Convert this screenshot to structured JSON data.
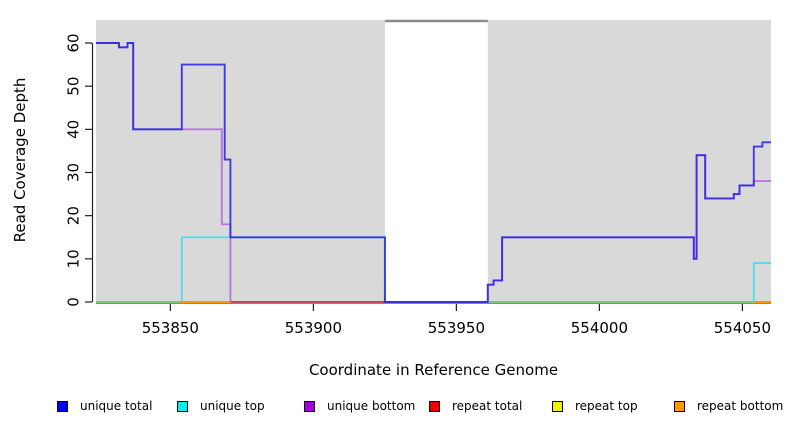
{
  "chart_data": {
    "type": "line",
    "title": "",
    "xlabel": "Coordinate in Reference Genome",
    "ylabel": "Read Coverage Depth",
    "x_axis": {
      "min": 553824,
      "max": 554060,
      "ticks": [
        553850,
        553900,
        553950,
        554000,
        554050
      ]
    },
    "y_axis": {
      "ticks": [
        0,
        10,
        20,
        30,
        40,
        50,
        60
      ],
      "ylim": [
        0,
        65
      ]
    },
    "plot_background": "#d9d9d9",
    "axis_color": "#222222",
    "baseline_axis_color": "#8a8a8a",
    "grid": "off",
    "legend_position": "bottom",
    "gap_region": {
      "x_start": 553925,
      "x_end": 553961,
      "fill": "#ffffff",
      "top_line_color": "#8a8a8a"
    },
    "series": [
      {
        "name": "unique total",
        "legend_color": "#0000ee",
        "line_color": "#2b24e0",
        "opacity": 0.88,
        "draw_order": 6,
        "runs": [
          [
            [
              553824,
              553832,
              60
            ],
            [
              553832,
              553835,
              59
            ],
            [
              553835,
              553837,
              60
            ],
            [
              553837,
              553854,
              40
            ],
            [
              553854,
              553869,
              55
            ],
            [
              553869,
              553871,
              33
            ],
            [
              553871,
              553925,
              15
            ],
            [
              553925,
              553961,
              0
            ],
            [
              553961,
              553963,
              4
            ],
            [
              553963,
              553966,
              5
            ],
            [
              553966,
              554033,
              15
            ],
            [
              554033,
              554034,
              10
            ],
            [
              554034,
              554037,
              34
            ],
            [
              554037,
              554047,
              24
            ],
            [
              554047,
              554049,
              25
            ],
            [
              554049,
              554054,
              27
            ],
            [
              554054,
              554057,
              36
            ],
            [
              554057,
              554060,
              37
            ]
          ]
        ]
      },
      {
        "name": "unique top",
        "legend_color": "#00eeee",
        "line_color": "#55dce8",
        "opacity": 1,
        "draw_order": 1,
        "runs": [
          [
            [
              553824,
              553854,
              0
            ],
            [
              553854,
              553925,
              15
            ],
            [
              553925,
              554054,
              0
            ],
            [
              554054,
              554060,
              9
            ]
          ]
        ]
      },
      {
        "name": "unique bottom",
        "legend_color": "#a100d6",
        "line_color": "#bb74e4",
        "opacity": 1,
        "draw_order": 2,
        "runs": [
          [
            [
              553824,
              553832,
              60
            ],
            [
              553832,
              553835,
              59
            ],
            [
              553835,
              553837,
              60
            ],
            [
              553837,
              553868,
              40
            ],
            [
              553868,
              553871,
              18
            ],
            [
              553871,
              553961,
              0
            ],
            [
              553961,
              553963,
              4
            ],
            [
              553963,
              553966,
              5
            ],
            [
              553966,
              554033,
              15
            ],
            [
              554033,
              554034,
              10
            ],
            [
              554034,
              554037,
              34
            ],
            [
              554037,
              554047,
              24
            ],
            [
              554047,
              554049,
              25
            ],
            [
              554049,
              554054,
              27
            ],
            [
              554054,
              554060,
              28
            ]
          ]
        ]
      },
      {
        "name": "repeat total",
        "legend_color": "#ee0000",
        "line_color": "#cc4060",
        "opacity": 1,
        "draw_order": 3,
        "runs": [
          [
            [
              553871,
              553925,
              0
            ]
          ]
        ]
      },
      {
        "name": "repeat top",
        "legend_color": "#f2f200",
        "line_color": "#7cc87c",
        "opacity": 1,
        "draw_order": 4,
        "runs": [
          [
            [
              553824,
              553853,
              0
            ]
          ],
          [
            [
              553961,
              554054,
              0
            ]
          ]
        ]
      },
      {
        "name": "repeat bottom",
        "legend_color": "#ff9900",
        "line_color": "#ff9800",
        "opacity": 1,
        "draw_order": 5,
        "runs": [
          [
            [
              553853,
              553871,
              0
            ]
          ],
          [
            [
              554054,
              554060,
              0
            ]
          ]
        ]
      }
    ]
  }
}
